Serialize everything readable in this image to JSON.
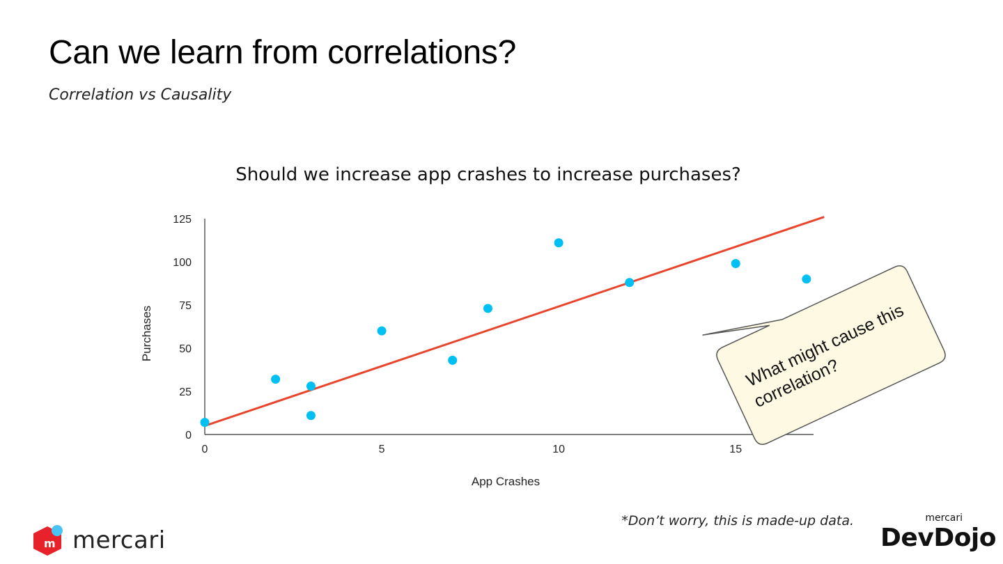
{
  "slide": {
    "title": "Can we learn from correlations?",
    "subtitle": "Correlation vs Causality",
    "footnote": "*Don’t worry, this is made-up data.",
    "callout": {
      "line1": "What might cause this",
      "line2": "correlation?",
      "fill": "#fdf9e3",
      "stroke": "#555555"
    }
  },
  "branding": {
    "mercari_wordmark": "mercari",
    "devdojo_small": "mercari",
    "devdojo_big": "DevDojo",
    "mercari_red": "#e8222b",
    "mercari_blue": "#49c4f2"
  },
  "chart_data": {
    "type": "scatter",
    "title": "Should we increase app crashes to increase purchases?",
    "xlabel": "App Crashes",
    "ylabel": "Purchases",
    "xlim": [
      0,
      17.2
    ],
    "ylim": [
      0,
      125
    ],
    "xticks": [
      0,
      5,
      10,
      15
    ],
    "yticks": [
      0,
      25,
      50,
      75,
      100,
      125
    ],
    "points_color": "#00bff3",
    "trendline_color": "#e8452c",
    "points": [
      {
        "x": 0,
        "y": 7
      },
      {
        "x": 2,
        "y": 32
      },
      {
        "x": 3,
        "y": 28
      },
      {
        "x": 3,
        "y": 11
      },
      {
        "x": 5,
        "y": 60
      },
      {
        "x": 7,
        "y": 43
      },
      {
        "x": 8,
        "y": 73
      },
      {
        "x": 10,
        "y": 111
      },
      {
        "x": 12,
        "y": 88
      },
      {
        "x": 15,
        "y": 99
      },
      {
        "x": 17,
        "y": 90
      }
    ],
    "trendline": {
      "x0": 0,
      "y0": 5,
      "x1": 17.5,
      "y1": 126
    },
    "grid": false,
    "legend": "none"
  }
}
